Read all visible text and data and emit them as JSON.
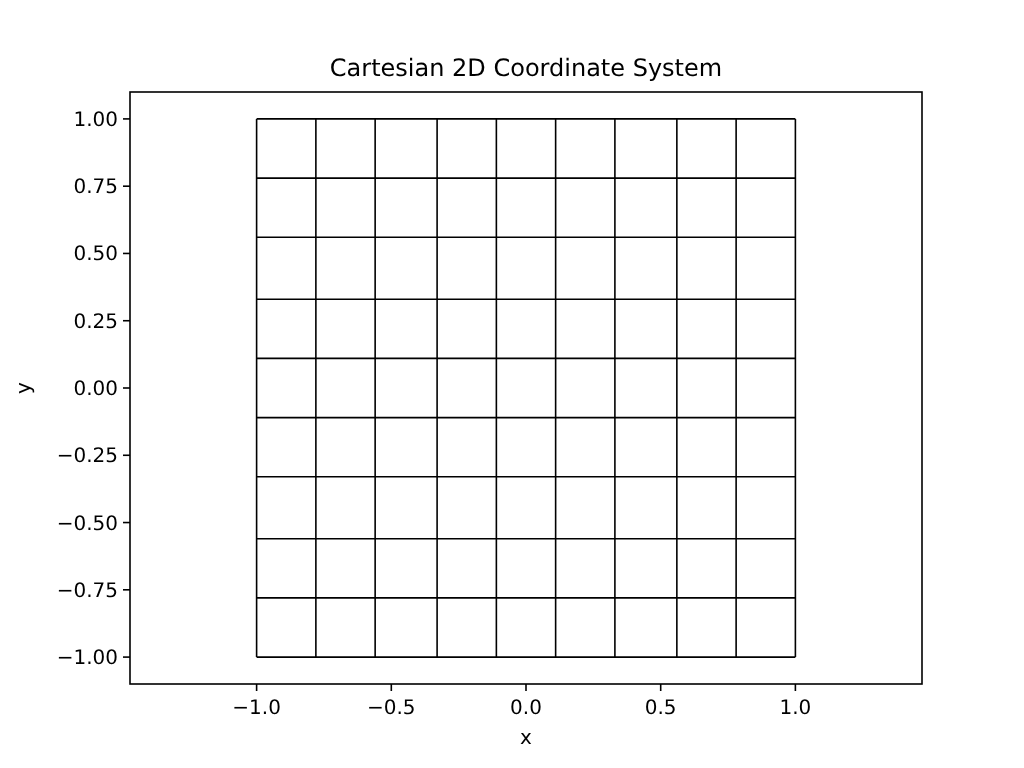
{
  "chart_data": {
    "type": "line",
    "title": "Cartesian 2D Coordinate System",
    "xlabel": "x",
    "ylabel": "y",
    "xlim": [
      -1.47,
      1.47
    ],
    "ylim": [
      -1.1,
      1.1
    ],
    "xticks": [
      {
        "value": -1,
        "label": "−1.0"
      },
      {
        "value": -0.5,
        "label": "−0.5"
      },
      {
        "value": 0,
        "label": "0.0"
      },
      {
        "value": 0.5,
        "label": "0.5"
      },
      {
        "value": 1,
        "label": "1.0"
      }
    ],
    "yticks": [
      {
        "value": -1,
        "label": "−1.00"
      },
      {
        "value": -0.75,
        "label": "−0.75"
      },
      {
        "value": -0.5,
        "label": "−0.50"
      },
      {
        "value": -0.25,
        "label": "−0.25"
      },
      {
        "value": 0,
        "label": "0.00"
      },
      {
        "value": 0.25,
        "label": "0.25"
      },
      {
        "value": 0.5,
        "label": "0.50"
      },
      {
        "value": 0.75,
        "label": "0.75"
      },
      {
        "value": 1,
        "label": "1.00"
      }
    ],
    "grid": false,
    "marker": "none",
    "line_style": "solid",
    "series": [
      {
        "color": "#000000",
        "x": [
          -1,
          -1
        ],
        "values": [
          -1,
          1
        ]
      },
      {
        "color": "#000000",
        "x": [
          -0.78,
          -0.78
        ],
        "values": [
          -1,
          1
        ]
      },
      {
        "color": "#000000",
        "x": [
          -0.56,
          -0.56
        ],
        "values": [
          -1,
          1
        ]
      },
      {
        "color": "#000000",
        "x": [
          -0.33,
          -0.33
        ],
        "values": [
          -1,
          1
        ]
      },
      {
        "color": "#000000",
        "x": [
          -0.11,
          -0.11
        ],
        "values": [
          -1,
          1
        ]
      },
      {
        "color": "#000000",
        "x": [
          0.11,
          0.11
        ],
        "values": [
          -1,
          1
        ]
      },
      {
        "color": "#000000",
        "x": [
          0.33,
          0.33
        ],
        "values": [
          -1,
          1
        ]
      },
      {
        "color": "#000000",
        "x": [
          0.56,
          0.56
        ],
        "values": [
          -1,
          1
        ]
      },
      {
        "color": "#000000",
        "x": [
          0.78,
          0.78
        ],
        "values": [
          -1,
          1
        ]
      },
      {
        "color": "#000000",
        "x": [
          1,
          1
        ],
        "values": [
          -1,
          1
        ]
      },
      {
        "color": "#000000",
        "x": [
          -1,
          1
        ],
        "values": [
          -1,
          -1
        ]
      },
      {
        "color": "#000000",
        "x": [
          -1,
          1
        ],
        "values": [
          -0.78,
          -0.78
        ]
      },
      {
        "color": "#000000",
        "x": [
          -1,
          1
        ],
        "values": [
          -0.56,
          -0.56
        ]
      },
      {
        "color": "#000000",
        "x": [
          -1,
          1
        ],
        "values": [
          -0.33,
          -0.33
        ]
      },
      {
        "color": "#000000",
        "x": [
          -1,
          1
        ],
        "values": [
          -0.11,
          -0.11
        ]
      },
      {
        "color": "#000000",
        "x": [
          -1,
          1
        ],
        "values": [
          0.11,
          0.11
        ]
      },
      {
        "color": "#000000",
        "x": [
          -1,
          1
        ],
        "values": [
          0.33,
          0.33
        ]
      },
      {
        "color": "#000000",
        "x": [
          -1,
          1
        ],
        "values": [
          0.56,
          0.56
        ]
      },
      {
        "color": "#000000",
        "x": [
          -1,
          1
        ],
        "values": [
          0.78,
          0.78
        ]
      },
      {
        "color": "#000000",
        "x": [
          -1,
          1
        ],
        "values": [
          1,
          1
        ]
      }
    ]
  }
}
